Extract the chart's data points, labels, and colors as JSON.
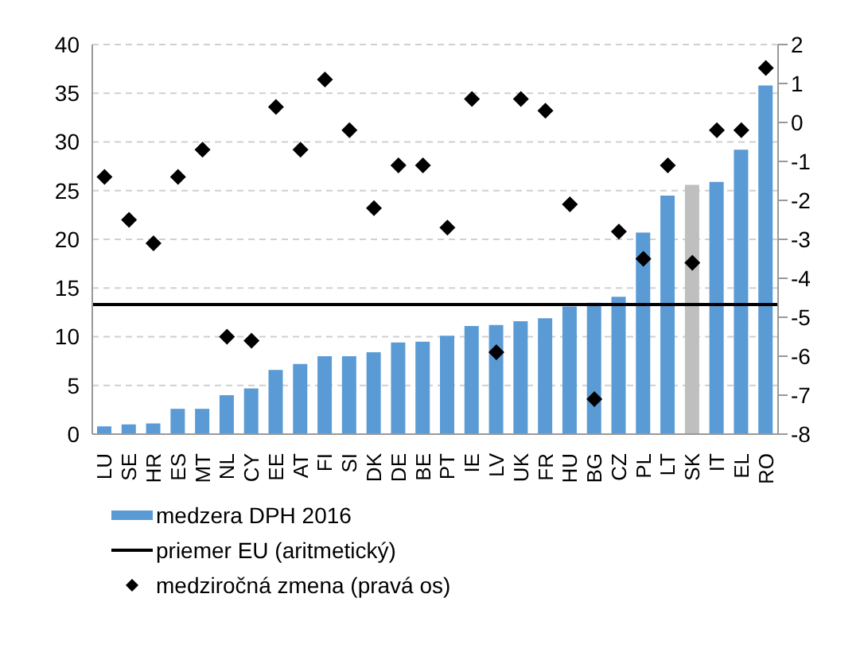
{
  "chart_data": {
    "type": "bar",
    "categories": [
      "LU",
      "SE",
      "HR",
      "ES",
      "MT",
      "NL",
      "CY",
      "EE",
      "AT",
      "FI",
      "SI",
      "DK",
      "DE",
      "BE",
      "PT",
      "IE",
      "LV",
      "UK",
      "FR",
      "HU",
      "BG",
      "CZ",
      "PL",
      "LT",
      "SK",
      "IT",
      "EL",
      "RO"
    ],
    "series": [
      {
        "name": "medzera DPH 2016",
        "color": "#5b9bd5",
        "colors": [
          "#5b9bd5",
          "#5b9bd5",
          "#5b9bd5",
          "#5b9bd5",
          "#5b9bd5",
          "#5b9bd5",
          "#5b9bd5",
          "#5b9bd5",
          "#5b9bd5",
          "#5b9bd5",
          "#5b9bd5",
          "#5b9bd5",
          "#5b9bd5",
          "#5b9bd5",
          "#5b9bd5",
          "#5b9bd5",
          "#5b9bd5",
          "#5b9bd5",
          "#5b9bd5",
          "#5b9bd5",
          "#5b9bd5",
          "#5b9bd5",
          "#5b9bd5",
          "#5b9bd5",
          "#bfbfbf",
          "#5b9bd5",
          "#5b9bd5",
          "#5b9bd5"
        ],
        "values": [
          0.8,
          1.0,
          1.1,
          2.6,
          2.6,
          4.0,
          4.7,
          6.6,
          7.2,
          8.0,
          8.0,
          8.4,
          9.4,
          9.5,
          10.1,
          11.1,
          11.2,
          11.6,
          11.9,
          13.1,
          13.5,
          14.1,
          20.7,
          24.5,
          25.6,
          25.9,
          29.2,
          35.8
        ]
      },
      {
        "name": "medziročná zmena (pravá os)",
        "type": "scatter",
        "axis": "y2",
        "color": "#000000",
        "marker": "diamond",
        "values": [
          -1.4,
          -2.5,
          -3.1,
          -1.4,
          -0.7,
          -5.5,
          -5.6,
          0.4,
          -0.7,
          1.1,
          -0.2,
          -2.2,
          -1.1,
          -1.1,
          -2.7,
          0.6,
          -5.9,
          0.6,
          0.3,
          -2.1,
          -7.1,
          -2.8,
          -3.5,
          -1.1,
          -3.6,
          -0.2,
          -0.2,
          1.4
        ]
      }
    ],
    "ref_lines": [
      {
        "axis": "y",
        "value": 13.3,
        "label": "priemer EU (aritmetický)",
        "color": "#000000"
      }
    ],
    "ylim": [
      0,
      40
    ],
    "yticks": [
      0,
      5,
      10,
      15,
      20,
      25,
      30,
      35,
      40
    ],
    "y2lim": [
      -8,
      2
    ],
    "y2ticks": [
      -8,
      -7,
      -6,
      -5,
      -4,
      -3,
      -2,
      -1,
      0,
      1,
      2
    ],
    "grid": "y",
    "legend": "bottom"
  }
}
